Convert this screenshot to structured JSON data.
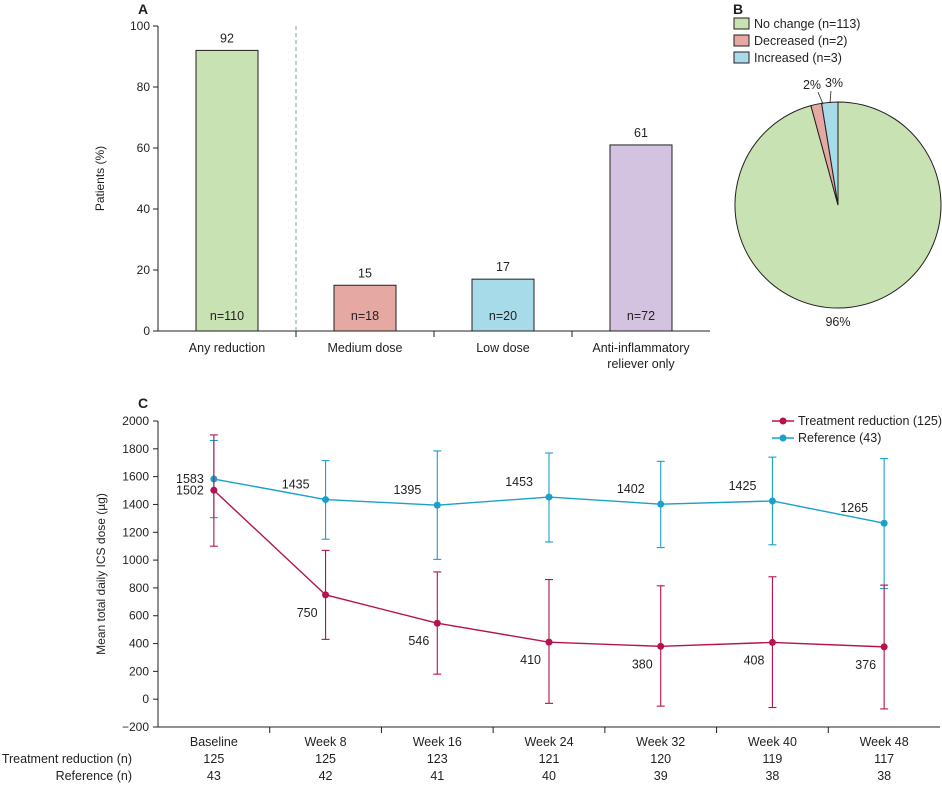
{
  "figure": {
    "panels": [
      "A",
      "B",
      "C"
    ]
  },
  "chart_data": [
    {
      "panel": "A",
      "type": "bar",
      "ylabel": "Patients (%)",
      "ylim": [
        0,
        100
      ],
      "yticks": [
        0,
        20,
        40,
        60,
        80,
        100
      ],
      "categories": [
        [
          "Any reduction"
        ],
        [
          "Medium dose"
        ],
        [
          "Low dose"
        ],
        [
          "Anti-inflammatory",
          "reliever only"
        ]
      ],
      "values": [
        92,
        15,
        17,
        61
      ],
      "value_labels": [
        "92",
        "15",
        "17",
        "61"
      ],
      "n_labels": [
        "n=110",
        "n=18",
        "n=20",
        "n=72"
      ],
      "colors": [
        "#c9e2b3",
        "#e6a8a2",
        "#a8dbea",
        "#d3c3e0"
      ],
      "separator_after_index": 0
    },
    {
      "panel": "B",
      "type": "pie",
      "legend": [
        "No change (n=113)",
        "Decreased (n=2)",
        "Increased (n=3)"
      ],
      "values": [
        113,
        2,
        3
      ],
      "labels": [
        "96%",
        "2%",
        "3%"
      ],
      "colors": [
        "#c9e2b3",
        "#e6a8a2",
        "#a8dbea"
      ]
    },
    {
      "panel": "C",
      "type": "line",
      "ylabel": "Mean total daily ICS dose (µg)",
      "ylim": [
        -200,
        2000
      ],
      "yticks": [
        -200,
        0,
        200,
        400,
        600,
        800,
        1000,
        1200,
        1400,
        1600,
        1800,
        2000
      ],
      "ytick_labels": [
        "−200",
        "0",
        "200",
        "400",
        "600",
        "800",
        "1000",
        "1200",
        "1400",
        "1600",
        "1800",
        "2000"
      ],
      "categories": [
        "Baseline",
        "Week 8",
        "Week 16",
        "Week 24",
        "Week 32",
        "Week 40",
        "Week 48"
      ],
      "series": [
        {
          "name": "Treatment reduction (125)",
          "color": "#b5124f",
          "values": [
            1502,
            750,
            546,
            410,
            380,
            408,
            376
          ],
          "labels": [
            "1502",
            "750",
            "546",
            "410",
            "380",
            "408",
            "376"
          ],
          "err_low": [
            1100,
            430,
            180,
            -30,
            -50,
            -60,
            -70
          ],
          "err_high": [
            1900,
            1070,
            915,
            860,
            815,
            880,
            820
          ]
        },
        {
          "name": "Reference (43)",
          "color": "#1aa1c9",
          "values": [
            1583,
            1435,
            1395,
            1453,
            1402,
            1425,
            1265
          ],
          "labels": [
            "1583",
            "1435",
            "1395",
            "1453",
            "1402",
            "1425",
            "1265"
          ],
          "err_low": [
            1305,
            1150,
            1005,
            1130,
            1090,
            1110,
            795
          ],
          "err_high": [
            1860,
            1715,
            1785,
            1770,
            1710,
            1740,
            1730
          ]
        }
      ],
      "n_table": [
        {
          "label": "Treatment reduction (n)",
          "values": [
            "125",
            "125",
            "123",
            "121",
            "120",
            "119",
            "117"
          ]
        },
        {
          "label": "Reference (n)",
          "values": [
            "43",
            "42",
            "41",
            "40",
            "39",
            "38",
            "38"
          ]
        }
      ]
    }
  ]
}
